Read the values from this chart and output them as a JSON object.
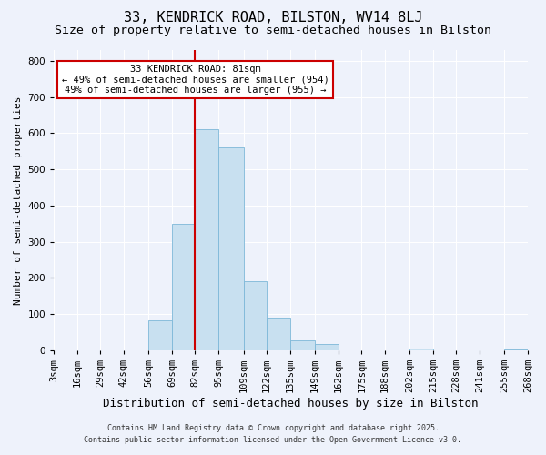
{
  "title": "33, KENDRICK ROAD, BILSTON, WV14 8LJ",
  "subtitle": "Size of property relative to semi-detached houses in Bilston",
  "xlabel": "Distribution of semi-detached houses by size in Bilston",
  "ylabel": "Number of semi-detached properties",
  "bin_edges": [
    3,
    16,
    29,
    42,
    56,
    69,
    82,
    95,
    109,
    122,
    135,
    149,
    162,
    175,
    188,
    202,
    215,
    228,
    241,
    255,
    268
  ],
  "bin_counts": [
    0,
    0,
    0,
    0,
    82,
    350,
    610,
    560,
    190,
    90,
    28,
    17,
    0,
    0,
    0,
    5,
    0,
    0,
    0,
    2
  ],
  "tick_labels": [
    "3sqm",
    "16sqm",
    "29sqm",
    "42sqm",
    "56sqm",
    "69sqm",
    "82sqm",
    "95sqm",
    "109sqm",
    "122sqm",
    "135sqm",
    "149sqm",
    "162sqm",
    "175sqm",
    "188sqm",
    "202sqm",
    "215sqm",
    "228sqm",
    "241sqm",
    "255sqm",
    "268sqm"
  ],
  "bar_color": "#c8e0f0",
  "bar_edge_color": "#7db8d8",
  "vline_x": 82,
  "vline_color": "#cc0000",
  "annotation_title": "33 KENDRICK ROAD: 81sqm",
  "annotation_line1": "← 49% of semi-detached houses are smaller (954)",
  "annotation_line2": "49% of semi-detached houses are larger (955) →",
  "annotation_box_facecolor": "#ffffff",
  "annotation_box_edgecolor": "#cc0000",
  "ylim": [
    0,
    830
  ],
  "yticks": [
    0,
    100,
    200,
    300,
    400,
    500,
    600,
    700,
    800
  ],
  "footnote1": "Contains HM Land Registry data © Crown copyright and database right 2025.",
  "footnote2": "Contains public sector information licensed under the Open Government Licence v3.0.",
  "background_color": "#eef2fb",
  "grid_color": "#ffffff",
  "title_fontsize": 11,
  "subtitle_fontsize": 9.5,
  "xlabel_fontsize": 9,
  "ylabel_fontsize": 8,
  "tick_fontsize": 7.5,
  "annotation_fontsize": 7.5,
  "footnote_fontsize": 6
}
